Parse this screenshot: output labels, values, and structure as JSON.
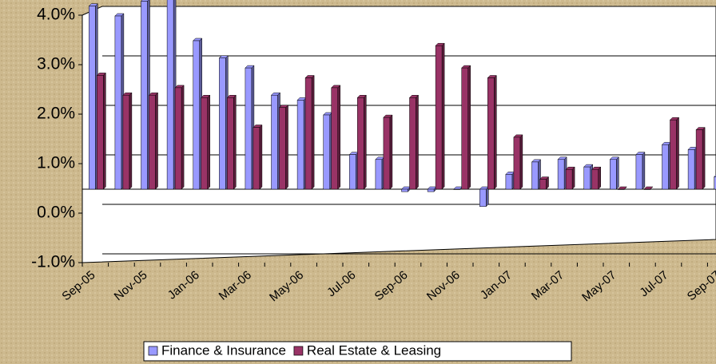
{
  "chart_data": {
    "type": "bar",
    "categories": [
      "Sep-05",
      null,
      "Nov-05",
      null,
      "Jan-06",
      null,
      "Mar-06",
      null,
      "May-06",
      null,
      "Jul-06",
      null,
      "Sep-06",
      null,
      "Nov-06",
      null,
      "Jan-07",
      null,
      "Mar-07",
      null,
      "May-07",
      null,
      "Jul-07",
      null,
      "Sep-07"
    ],
    "series": [
      {
        "name": "Finance & Insurance",
        "color": "#9999ff",
        "values": [
          3.7,
          3.5,
          3.8,
          3.9,
          3.0,
          2.65,
          2.45,
          1.9,
          1.8,
          1.5,
          0.7,
          0.6,
          -0.05,
          -0.05,
          0.0,
          -0.35,
          0.3,
          0.55,
          0.6,
          0.45,
          0.6,
          0.7,
          0.9,
          0.8,
          0.25
        ]
      },
      {
        "name": "Real Estate & Leasing",
        "color": "#993366",
        "values": [
          2.3,
          1.9,
          1.9,
          2.05,
          1.85,
          1.85,
          1.25,
          1.65,
          2.25,
          2.05,
          1.85,
          1.45,
          1.85,
          2.9,
          2.45,
          2.25,
          1.05,
          0.2,
          0.4,
          0.4,
          0.0,
          0.0,
          1.4,
          1.2,
          1.2
        ]
      }
    ],
    "ylim": [
      -1,
      4
    ],
    "yticks": [
      {
        "value": -1,
        "label": "-1.0%"
      },
      {
        "value": 0,
        "label": "0.0%"
      },
      {
        "value": 1,
        "label": "1.0%"
      },
      {
        "value": 2,
        "label": "2.0%"
      },
      {
        "value": 3,
        "label": "3.0%"
      },
      {
        "value": 4,
        "label": "4.0%"
      }
    ],
    "grid": true
  }
}
